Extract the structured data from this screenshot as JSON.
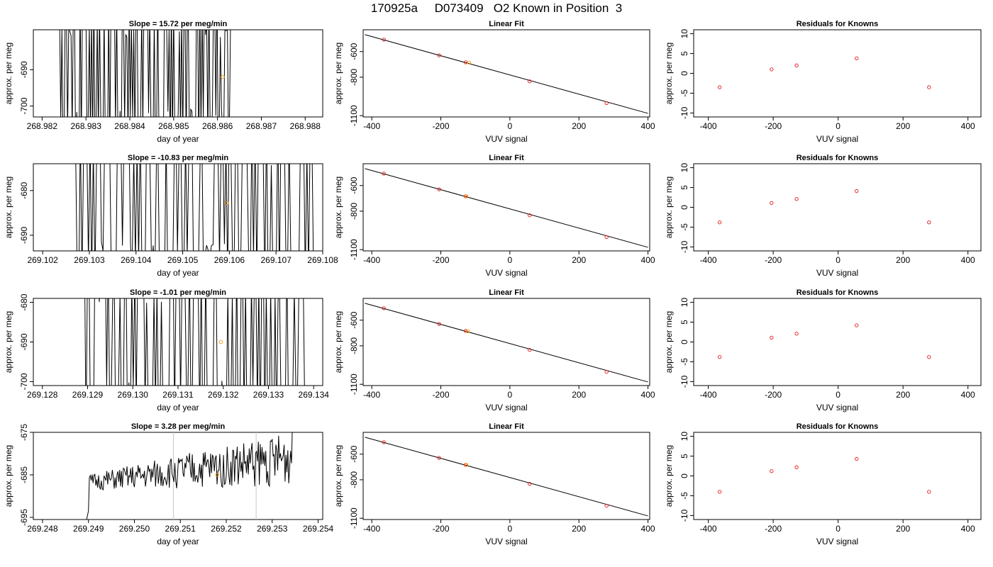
{
  "header": {
    "run_id": "170925a",
    "sample_id": "D073409",
    "description": "O2 Known in Position  3"
  },
  "colors": {
    "axis": "#000000",
    "trace": "#000000",
    "known_point": "#e41a1c",
    "sample_point": "#ff9900",
    "marker_line": "#c8c8c8"
  },
  "chart_data": [
    {
      "type": "line",
      "panel": "time-series-1",
      "title": "Slope =  15.72  per meg/min",
      "xlabel": "day of year",
      "ylabel": "approx. per meg",
      "xlim": [
        268.9818,
        268.9884
      ],
      "ylim": [
        -703,
        -679
      ],
      "x_ticks": [
        "268.982",
        "268.983",
        "268.984",
        "268.985",
        "268.986",
        "268.987",
        "268.988"
      ],
      "x_tick_values": [
        268.982,
        268.983,
        268.984,
        268.985,
        268.986,
        268.987,
        268.988
      ],
      "y_ticks": [
        "-690",
        "-700"
      ],
      "y_tick_values": [
        -690,
        -700
      ],
      "trace_seed": 11,
      "trace_start": 268.9824,
      "trace_end": 268.9863,
      "trace_style": "spikes",
      "trace_base": -691,
      "trace_spread": 14,
      "marker_x": [],
      "sample_point": {
        "x": 268.98612,
        "y": -692
      }
    },
    {
      "type": "line",
      "panel": "time-series-2",
      "title": "Slope =  -10.83  per meg/min",
      "xlabel": "day of year",
      "ylabel": "approx. per meg",
      "xlim": [
        269.1018,
        269.108
      ],
      "ylim": [
        -693.5,
        -674
      ],
      "x_ticks": [
        "269.102",
        "269.103",
        "269.104",
        "269.105",
        "269.106",
        "269.107",
        "269.108"
      ],
      "x_tick_values": [
        269.102,
        269.103,
        269.104,
        269.105,
        269.106,
        269.107,
        269.108
      ],
      "y_ticks": [
        "-680",
        "-690"
      ],
      "y_tick_values": [
        -680,
        -690
      ],
      "trace_seed": 23,
      "trace_start": 269.1026,
      "trace_end": 269.1078,
      "trace_style": "spikes",
      "trace_base": -683,
      "trace_spread": 12,
      "marker_x": [],
      "sample_point": {
        "x": 269.10595,
        "y": -682.8
      }
    },
    {
      "type": "line",
      "panel": "time-series-3",
      "title": "Slope =  -1.01  per meg/min",
      "xlabel": "day of year",
      "ylabel": "approx. per meg",
      "xlim": [
        269.1278,
        269.1342
      ],
      "ylim": [
        -701,
        -679
      ],
      "x_ticks": [
        "269.128",
        "269.129",
        "269.130",
        "269.131",
        "269.132",
        "269.133",
        "269.134"
      ],
      "x_tick_values": [
        269.128,
        269.129,
        269.13,
        269.131,
        269.132,
        269.133,
        269.134
      ],
      "y_ticks": [
        "-680",
        "-690",
        "-700"
      ],
      "y_tick_values": [
        -680,
        -690,
        -700
      ],
      "trace_seed": 37,
      "trace_start": 269.1289,
      "trace_end": 269.1338,
      "trace_style": "spikes",
      "trace_base": -690,
      "trace_spread": 14,
      "marker_x": [],
      "sample_point": {
        "x": 269.13195,
        "y": -690
      }
    },
    {
      "type": "line",
      "panel": "time-series-4",
      "title": "Slope =  3.28  per meg/min",
      "xlabel": "day of year",
      "ylabel": "approx. per meg",
      "xlim": [
        269.2478,
        269.2541
      ],
      "ylim": [
        -695.5,
        -675
      ],
      "x_ticks": [
        "269.248",
        "269.249",
        "269.250",
        "269.251",
        "269.252",
        "269.253",
        "269.254"
      ],
      "x_tick_values": [
        269.248,
        269.249,
        269.25,
        269.251,
        269.252,
        269.253,
        269.254
      ],
      "y_ticks": [
        "-675",
        "-685",
        "-695"
      ],
      "y_tick_values": [
        -675,
        -685,
        -695
      ],
      "trace_seed": 51,
      "trace_start": 269.2489,
      "trace_end": 269.2535,
      "trace_style": "noise",
      "trace_base": -687,
      "trace_spread": 6,
      "marker_x": [
        269.25085,
        269.25265
      ],
      "sample_point": {
        "x": 269.2518,
        "y": -685
      }
    },
    {
      "type": "scatter",
      "panel": "linear-fit-1",
      "title": "Linear Fit",
      "xlabel": "VUV signal",
      "ylabel": "approx. per meg",
      "xlim": [
        -425,
        405
      ],
      "ylim": [
        -1110,
        -430
      ],
      "x_ticks": [
        "-400",
        "-200",
        "0",
        "200",
        "400"
      ],
      "x_tick_values": [
        -400,
        -200,
        0,
        200,
        400
      ],
      "y_ticks": [
        "-600",
        "-800",
        "-1100"
      ],
      "y_tick_values": [
        -600,
        -800,
        -1100
      ],
      "fit_line": {
        "x": [
          -420,
          400
        ],
        "y": [
          -468,
          -1082
        ]
      },
      "known_points": {
        "x": [
          -365,
          -205,
          -128,
          57,
          280
        ],
        "y": [
          -507,
          -630,
          -684,
          -832,
          -1002
        ]
      },
      "sample_point": {
        "x": -118,
        "y": -686
      }
    },
    {
      "type": "scatter",
      "panel": "linear-fit-2",
      "title": "Linear Fit",
      "xlabel": "VUV signal",
      "ylabel": "approx. per meg",
      "xlim": [
        -425,
        405
      ],
      "ylim": [
        -1110,
        -430
      ],
      "x_ticks": [
        "-400",
        "-200",
        "0",
        "200",
        "400"
      ],
      "x_tick_values": [
        -400,
        -200,
        0,
        200,
        400
      ],
      "y_ticks": [
        "-600",
        "-800",
        "-1100"
      ],
      "y_tick_values": [
        -600,
        -800,
        -1100
      ],
      "fit_line": {
        "x": [
          -420,
          400
        ],
        "y": [
          -468,
          -1082
        ]
      },
      "known_points": {
        "x": [
          -365,
          -205,
          -128,
          57,
          280
        ],
        "y": [
          -507,
          -630,
          -684,
          -832,
          -1002
        ]
      },
      "sample_point": {
        "x": -126,
        "y": -684
      }
    },
    {
      "type": "scatter",
      "panel": "linear-fit-3",
      "title": "Linear Fit",
      "xlabel": "VUV signal",
      "ylabel": "approx. per meg",
      "xlim": [
        -425,
        405
      ],
      "ylim": [
        -1110,
        -430
      ],
      "x_ticks": [
        "-400",
        "-200",
        "0",
        "200",
        "400"
      ],
      "x_tick_values": [
        -400,
        -200,
        0,
        200,
        400
      ],
      "y_ticks": [
        "-600",
        "-800",
        "-1100"
      ],
      "y_tick_values": [
        -600,
        -800,
        -1100
      ],
      "fit_line": {
        "x": [
          -420,
          400
        ],
        "y": [
          -468,
          -1082
        ]
      },
      "known_points": {
        "x": [
          -365,
          -205,
          -128,
          57,
          280
        ],
        "y": [
          -507,
          -630,
          -684,
          -832,
          -1002
        ]
      },
      "sample_point": {
        "x": -122,
        "y": -686
      }
    },
    {
      "type": "scatter",
      "panel": "linear-fit-4",
      "title": "Linear Fit",
      "xlabel": "VUV signal",
      "ylabel": "approx. per meg",
      "xlim": [
        -425,
        405
      ],
      "ylim": [
        -1110,
        -430
      ],
      "x_ticks": [
        "-400",
        "-200",
        "0",
        "200",
        "400"
      ],
      "x_tick_values": [
        -400,
        -200,
        0,
        200,
        400
      ],
      "y_ticks": [
        "-600",
        "-800",
        "-1100"
      ],
      "y_tick_values": [
        -600,
        -800,
        -1100
      ],
      "fit_line": {
        "x": [
          -420,
          400
        ],
        "y": [
          -468,
          -1082
        ]
      },
      "known_points": {
        "x": [
          -365,
          -205,
          -128,
          57,
          280
        ],
        "y": [
          -507,
          -630,
          -684,
          -832,
          -1002
        ]
      },
      "sample_point": {
        "x": -126,
        "y": -684
      }
    },
    {
      "type": "scatter",
      "panel": "residuals-1",
      "title": "Residuals for Knowns",
      "xlabel": "VUV signal",
      "ylabel": "approx. per meg",
      "xlim": [
        -445,
        440
      ],
      "ylim": [
        -11,
        11
      ],
      "x_ticks": [
        "-400",
        "-200",
        "0",
        "200",
        "400"
      ],
      "x_tick_values": [
        -400,
        -200,
        0,
        200,
        400
      ],
      "y_ticks": [
        "10",
        "5",
        "0",
        "-5",
        "-10"
      ],
      "y_tick_values": [
        10,
        5,
        0,
        -5,
        -10
      ],
      "known_points": {
        "x": [
          -365,
          -205,
          -128,
          57,
          280
        ],
        "y": [
          -3.5,
          1.0,
          2.0,
          3.8,
          -3.5
        ]
      }
    },
    {
      "type": "scatter",
      "panel": "residuals-2",
      "title": "Residuals for Knowns",
      "xlabel": "VUV signal",
      "ylabel": "approx. per meg",
      "xlim": [
        -445,
        440
      ],
      "ylim": [
        -11,
        11
      ],
      "x_ticks": [
        "-400",
        "-200",
        "0",
        "200",
        "400"
      ],
      "x_tick_values": [
        -400,
        -200,
        0,
        200,
        400
      ],
      "y_ticks": [
        "10",
        "5",
        "0",
        "-5",
        "-10"
      ],
      "y_tick_values": [
        10,
        5,
        0,
        -5,
        -10
      ],
      "known_points": {
        "x": [
          -365,
          -205,
          -128,
          57,
          280
        ],
        "y": [
          -3.8,
          1.1,
          2.1,
          4.1,
          -3.8
        ]
      }
    },
    {
      "type": "scatter",
      "panel": "residuals-3",
      "title": "Residuals for Knowns",
      "xlabel": "VUV signal",
      "ylabel": "approx. per meg",
      "xlim": [
        -445,
        440
      ],
      "ylim": [
        -11,
        11
      ],
      "x_ticks": [
        "-400",
        "-200",
        "0",
        "200",
        "400"
      ],
      "x_tick_values": [
        -400,
        -200,
        0,
        200,
        400
      ],
      "y_ticks": [
        "10",
        "5",
        "0",
        "-5",
        "-10"
      ],
      "y_tick_values": [
        10,
        5,
        0,
        -5,
        -10
      ],
      "known_points": {
        "x": [
          -365,
          -205,
          -128,
          57,
          280
        ],
        "y": [
          -3.8,
          1.1,
          2.1,
          4.2,
          -3.8
        ]
      }
    },
    {
      "type": "scatter",
      "panel": "residuals-4",
      "title": "Residuals for Knowns",
      "xlabel": "VUV signal",
      "ylabel": "approx. per meg",
      "xlim": [
        -445,
        440
      ],
      "ylim": [
        -11,
        11
      ],
      "x_ticks": [
        "-400",
        "-200",
        "0",
        "200",
        "400"
      ],
      "x_tick_values": [
        -400,
        -200,
        0,
        200,
        400
      ],
      "y_ticks": [
        "10",
        "5",
        "0",
        "-5",
        "-10"
      ],
      "y_tick_values": [
        10,
        5,
        0,
        -5,
        -10
      ],
      "known_points": {
        "x": [
          -365,
          -205,
          -128,
          57,
          280
        ],
        "y": [
          -4.0,
          1.2,
          2.2,
          4.3,
          -4.0
        ]
      }
    }
  ]
}
